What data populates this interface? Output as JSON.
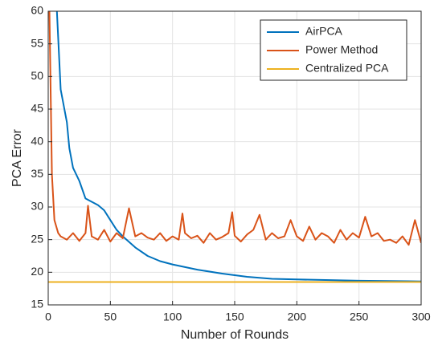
{
  "chart_data": {
    "type": "line",
    "xlabel": "Number of Rounds",
    "ylabel": "PCA Error",
    "xlim": [
      0,
      300
    ],
    "xticks": [
      0,
      50,
      100,
      150,
      200,
      250,
      300
    ],
    "ylim": [
      15,
      60
    ],
    "yticks": [
      15,
      20,
      25,
      30,
      35,
      40,
      45,
      50,
      55,
      60
    ],
    "grid": true,
    "legend": "upper right",
    "series": [
      {
        "name": "AirPCA",
        "color": "#0072bd",
        "x": [
          7,
          10,
          12,
          15,
          17,
          20,
          25,
          30,
          35,
          40,
          45,
          50,
          55,
          60,
          70,
          80,
          90,
          100,
          120,
          140,
          160,
          180,
          200,
          250,
          300
        ],
        "values": [
          60,
          48,
          46,
          43,
          39,
          36,
          34,
          31.3,
          30.8,
          30.3,
          29.5,
          28,
          26.5,
          25.5,
          23.8,
          22.5,
          21.7,
          21.2,
          20.4,
          19.8,
          19.3,
          19.0,
          18.9,
          18.7,
          18.6
        ]
      },
      {
        "name": "Power Method",
        "color": "#d95319",
        "x": [
          1,
          3,
          5,
          8,
          10,
          15,
          20,
          25,
          30,
          32,
          35,
          40,
          45,
          50,
          55,
          60,
          65,
          70,
          75,
          80,
          85,
          90,
          95,
          100,
          105,
          108,
          110,
          115,
          120,
          125,
          130,
          135,
          140,
          145,
          148,
          150,
          155,
          160,
          165,
          170,
          175,
          180,
          185,
          190,
          195,
          200,
          205,
          210,
          215,
          220,
          225,
          230,
          235,
          240,
          245,
          250,
          255,
          260,
          265,
          270,
          275,
          280,
          285,
          290,
          295,
          300
        ],
        "values": [
          60,
          35,
          28,
          26,
          25.5,
          25,
          26,
          24.8,
          26,
          30.2,
          25.5,
          25,
          26.5,
          24.7,
          26,
          25.2,
          29.8,
          25.5,
          26,
          25.3,
          25,
          26,
          24.8,
          25.5,
          25,
          29,
          26,
          25.2,
          25.6,
          24.5,
          26,
          25,
          25.4,
          26,
          29.2,
          25.6,
          24.7,
          25.8,
          26.5,
          28.8,
          25,
          26,
          25.2,
          25.5,
          28,
          25.5,
          24.8,
          27,
          25,
          26,
          25.5,
          24.5,
          26.5,
          25,
          26,
          25.3,
          28.5,
          25.5,
          26,
          24.8,
          25,
          24.5,
          25.5,
          24.2,
          28,
          24.5
        ]
      },
      {
        "name": "Centralized PCA",
        "color": "#edb120",
        "x": [
          0,
          300
        ],
        "values": [
          18.5,
          18.5
        ]
      }
    ]
  }
}
